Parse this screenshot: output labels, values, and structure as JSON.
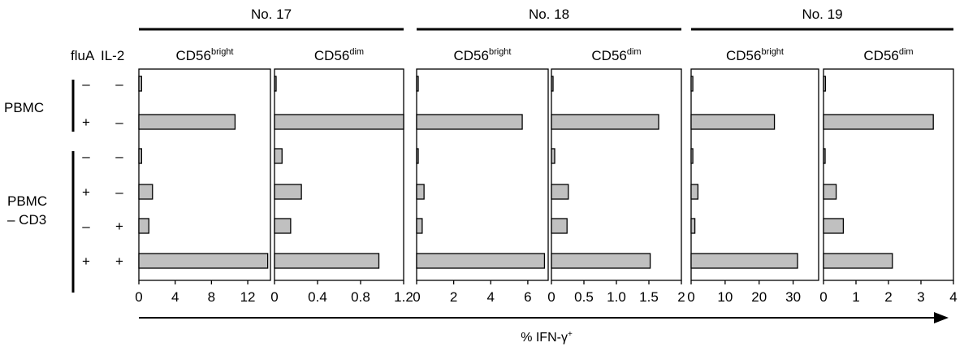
{
  "colors": {
    "bar_fill": "#c0c0c0",
    "stroke": "#000000"
  },
  "conditions": {
    "header_flua": "fluA",
    "header_il2": "IL-2",
    "group_labels": [
      {
        "lines": [
          "PBMC"
        ]
      },
      {
        "lines": [
          "PBMC",
          "– CD3"
        ]
      }
    ],
    "rows": [
      {
        "flua": "–",
        "il2": "–"
      },
      {
        "flua": "+",
        "il2": "–"
      },
      {
        "flua": "–",
        "il2": "–"
      },
      {
        "flua": "+",
        "il2": "–"
      },
      {
        "flua": "–",
        "il2": "+"
      },
      {
        "flua": "+",
        "il2": "+"
      }
    ]
  },
  "donors": [
    "No. 17",
    "No. 18",
    "No. 19"
  ],
  "xlabel": {
    "main": "% IFN-γ",
    "sup": "+"
  },
  "chart_data": {
    "type": "bar",
    "orientation": "horizontal",
    "xlabel": "% IFN-γ+",
    "categories": [
      "PBMC fluA– IL-2–",
      "PBMC fluA+ IL-2–",
      "PBMC – CD3 fluA– IL-2–",
      "PBMC – CD3 fluA+ IL-2–",
      "PBMC – CD3 fluA– IL-2+",
      "PBMC – CD3 fluA+ IL-2+"
    ],
    "panels": [
      {
        "donor": "No. 17",
        "base": "CD56",
        "sup": "bright",
        "xlim": [
          0,
          14.5
        ],
        "ticks": [
          "0",
          "4",
          "8",
          "12"
        ],
        "tick_values": [
          0,
          4,
          8,
          12
        ],
        "values": [
          0.3,
          10.6,
          0.3,
          1.5,
          1.1,
          14.2
        ]
      },
      {
        "donor": "No. 17",
        "base": "CD56",
        "sup": "dim",
        "xlim": [
          0,
          1.2
        ],
        "ticks": [
          "0",
          "0.4",
          "0.8",
          "1.2"
        ],
        "tick_values": [
          0,
          0.4,
          0.8,
          1.2
        ],
        "values": [
          0.01,
          1.2,
          0.07,
          0.25,
          0.15,
          0.97
        ]
      },
      {
        "donor": "No. 18",
        "base": "CD56",
        "sup": "bright",
        "xlim": [
          0,
          7.1
        ],
        "ticks": [
          "0",
          "2",
          "4",
          "6"
        ],
        "tick_values": [
          0,
          2,
          4,
          6
        ],
        "values": [
          0.05,
          5.7,
          0.05,
          0.4,
          0.3,
          6.9
        ]
      },
      {
        "donor": "No. 18",
        "base": "CD56",
        "sup": "dim",
        "xlim": [
          0,
          2
        ],
        "ticks": [
          "0",
          "0.5",
          "1.0",
          "1.5",
          "2"
        ],
        "tick_values": [
          0,
          0.5,
          1.0,
          1.5,
          2
        ],
        "values": [
          0.02,
          1.65,
          0.05,
          0.26,
          0.24,
          1.52
        ]
      },
      {
        "donor": "No. 19",
        "base": "CD56",
        "sup": "bright",
        "xlim": [
          0,
          37.5
        ],
        "ticks": [
          "0",
          "10",
          "20",
          "30"
        ],
        "tick_values": [
          0,
          10,
          20,
          30
        ],
        "values": [
          0.5,
          24.5,
          0.5,
          2.0,
          1.1,
          31.3
        ]
      },
      {
        "donor": "No. 19",
        "base": "CD56",
        "sup": "dim",
        "xlim": [
          0,
          4
        ],
        "ticks": [
          "0",
          "1",
          "2",
          "3",
          "4"
        ],
        "tick_values": [
          0,
          1,
          2,
          3,
          4
        ],
        "values": [
          0.06,
          3.38,
          0.04,
          0.39,
          0.61,
          2.12
        ]
      }
    ]
  }
}
